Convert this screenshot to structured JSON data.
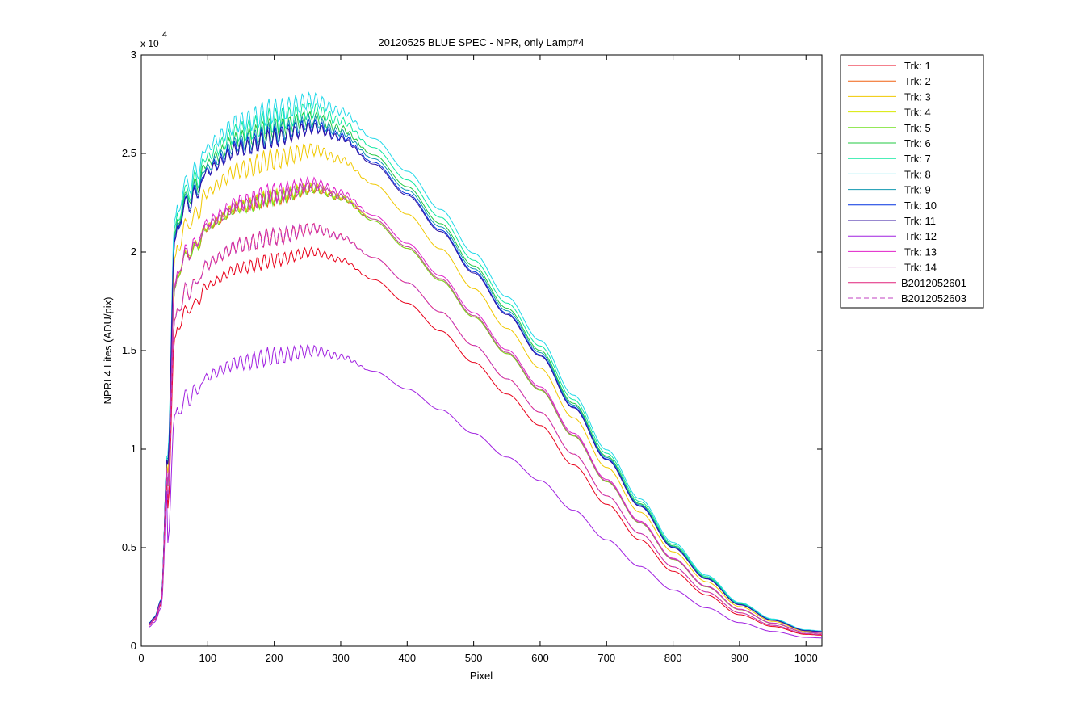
{
  "chart_data": {
    "type": "line",
    "title": "20120525 BLUE SPEC - NPR, only Lamp#4",
    "xlabel": "Pixel",
    "ylabel": "NPRL4 Lites (ADU/pix)",
    "y_multiplier": "x 10",
    "y_exponent": "4",
    "xlim": [
      0,
      1024
    ],
    "ylim": [
      0,
      3
    ],
    "x_ticks": [
      0,
      100,
      200,
      300,
      400,
      500,
      600,
      700,
      800,
      900,
      1000
    ],
    "y_ticks": [
      0,
      0.5,
      1,
      1.5,
      2,
      2.5,
      3
    ],
    "y_tick_labels": [
      "0",
      "0.5",
      "1",
      "1.5",
      "2",
      "2.5",
      "3"
    ],
    "grid": false,
    "legend_position": "outside-right-top",
    "x_points": [
      12,
      20,
      30,
      40,
      50,
      60,
      80,
      100,
      150,
      200,
      260,
      300,
      350,
      400,
      450,
      500,
      550,
      600,
      650,
      700,
      750,
      800,
      850,
      900,
      950,
      1000,
      1024
    ],
    "series": [
      {
        "name": "Trk: 1",
        "color": "#e8001a",
        "style": "solid",
        "peak": 2.0,
        "ripple": 0.04
      },
      {
        "name": "Trk: 2",
        "color": "#f06010",
        "style": "solid",
        "peak": 2.32,
        "ripple": 0.04
      },
      {
        "name": "Trk: 3",
        "color": "#f0c800",
        "style": "solid",
        "peak": 2.52,
        "ripple": 0.06
      },
      {
        "name": "Trk: 4",
        "color": "#d8e800",
        "style": "solid",
        "peak": 2.33,
        "ripple": 0.04
      },
      {
        "name": "Trk: 5",
        "color": "#70e020",
        "style": "solid",
        "peak": 2.32,
        "ripple": 0.04
      },
      {
        "name": "Trk: 6",
        "color": "#20c840",
        "style": "solid",
        "peak": 2.68,
        "ripple": 0.06
      },
      {
        "name": "Trk: 7",
        "color": "#10e8a0",
        "style": "solid",
        "peak": 2.72,
        "ripple": 0.07
      },
      {
        "name": "Trk: 8",
        "color": "#20d8e8",
        "style": "solid",
        "peak": 2.77,
        "ripple": 0.07
      },
      {
        "name": "Trk: 9",
        "color": "#1098b0",
        "style": "solid",
        "peak": 2.66,
        "ripple": 0.06
      },
      {
        "name": "Trk: 10",
        "color": "#0030e0",
        "style": "solid",
        "peak": 2.64,
        "ripple": 0.06
      },
      {
        "name": "Trk: 11",
        "color": "#3010a0",
        "style": "solid",
        "peak": 2.63,
        "ripple": 0.05
      },
      {
        "name": "Trk: 12",
        "color": "#a020e0",
        "style": "solid",
        "peak": 1.5,
        "ripple": 0.05
      },
      {
        "name": "Trk: 13",
        "color": "#e020c8",
        "style": "solid",
        "peak": 2.35,
        "ripple": 0.05
      },
      {
        "name": "Trk: 14",
        "color": "#c040b0",
        "style": "solid",
        "peak": 2.33,
        "ripple": 0.04
      },
      {
        "name": "B2012052601",
        "color": "#e0207a",
        "style": "solid",
        "peak": 2.12,
        "ripple": 0.05
      },
      {
        "name": "B2012052603",
        "color": "#c040c0",
        "style": "dashed",
        "peak": 2.12,
        "ripple": 0.05
      }
    ],
    "shape": [
      0.04,
      0.05,
      0.08,
      0.35,
      0.78,
      0.86,
      0.88,
      0.92,
      0.96,
      0.98,
      1.0,
      0.98,
      0.93,
      0.87,
      0.8,
      0.72,
      0.64,
      0.56,
      0.46,
      0.36,
      0.27,
      0.19,
      0.13,
      0.08,
      0.05,
      0.03,
      0.028
    ]
  }
}
